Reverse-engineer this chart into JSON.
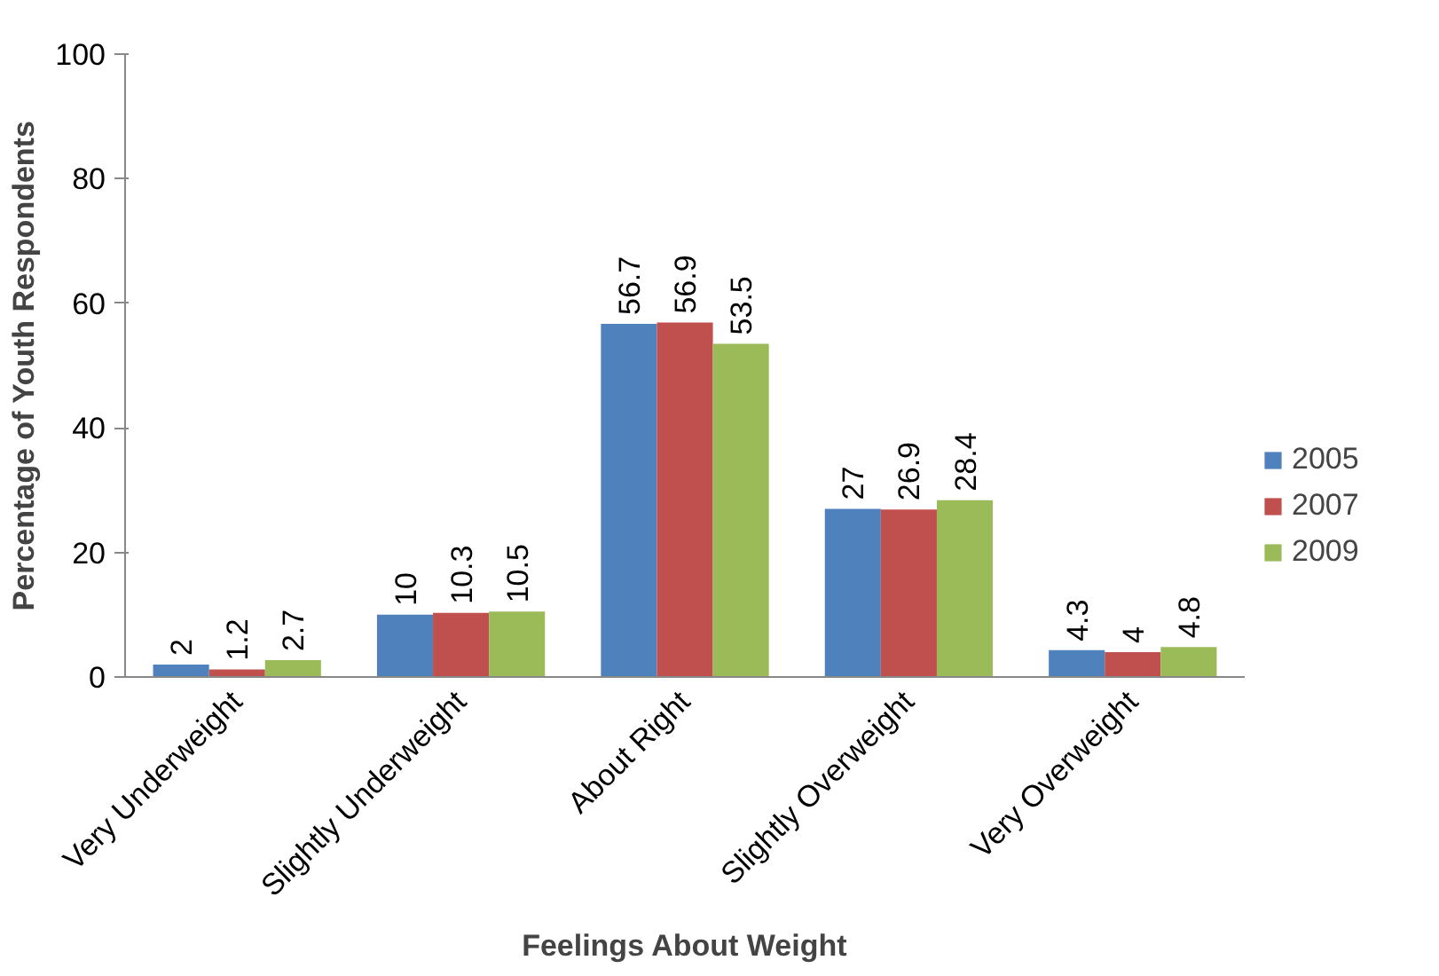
{
  "chart_data": {
    "type": "bar",
    "xlabel": "Feelings About Weight",
    "ylabel": "Percentage of Youth Respondents",
    "categories": [
      "Very Underweight",
      "Slightly Underweight",
      "About Right",
      "Slightly Overweight",
      "Very Overweight"
    ],
    "series": [
      {
        "name": "2005",
        "color": "#4f81bd",
        "values": [
          2,
          10,
          56.7,
          27,
          4.3
        ]
      },
      {
        "name": "2007",
        "color": "#c0504d",
        "values": [
          1.2,
          10.3,
          56.9,
          26.9,
          4
        ]
      },
      {
        "name": "2009",
        "color": "#9bbb59",
        "values": [
          2.7,
          10.5,
          53.5,
          28.4,
          4.8
        ]
      }
    ],
    "ylim": [
      0,
      100
    ],
    "yticks": [
      0,
      20,
      40,
      60,
      80,
      100
    ],
    "grid": false,
    "legend": "right",
    "data_labels": true
  }
}
